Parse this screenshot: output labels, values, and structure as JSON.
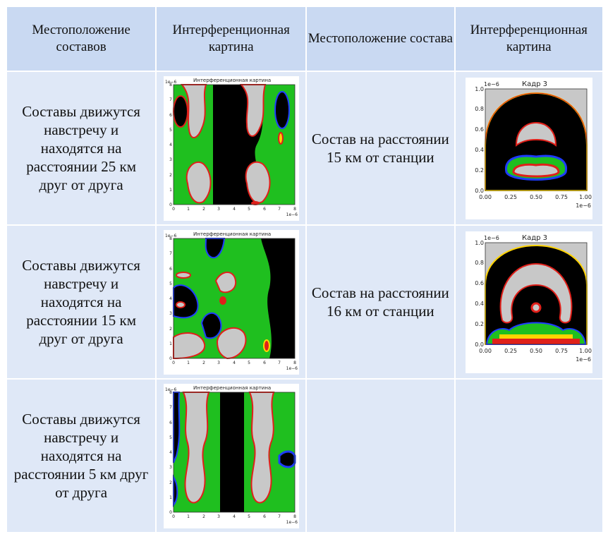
{
  "headers": [
    "Местоположение составов",
    "Интерференционная картина",
    "Местоположение состава",
    "Интерференционная картина"
  ],
  "rows": [
    {
      "left_text": "Составы движутся навстречу и находятся на расстоянии 25 км друг от друга",
      "right_text": "Состав на расстоянии 15 км от станции"
    },
    {
      "left_text": "Составы движутся навстречу и находятся на расстоянии 15 км друг от друга",
      "right_text": "Состав на расстоянии 16 км от станции"
    },
    {
      "left_text": "Составы движутся навстречу и находятся на расстоянии 5 км друг от друга",
      "right_text": ""
    }
  ],
  "left_plot": {
    "title": "Интерференционная картина",
    "scale_y": "1e−6",
    "scale_x": "1e−6",
    "y_ticks": [
      "0",
      "1",
      "2",
      "3",
      "4",
      "5",
      "6",
      "7",
      "8"
    ],
    "x_ticks": [
      "0",
      "1",
      "2",
      "3",
      "4",
      "5",
      "6",
      "7",
      "8"
    ]
  },
  "right_plot": {
    "title": "Кадр 3",
    "scale_y": "1e−6",
    "scale_x": "1e−6",
    "y_ticks": [
      "0.0",
      "0.2",
      "0.4",
      "0.6",
      "0.8",
      "1.0"
    ],
    "x_ticks": [
      "0.00",
      "0.25",
      "0.50",
      "0.75",
      "1.00"
    ]
  },
  "colors": {
    "header_bg": "#c9d9f2",
    "cell_bg": "#dfe8f7",
    "field_green": "#1fbf1f",
    "field_black": "#000000",
    "field_gray": "#c8c8c8",
    "ring_red": "#e0201a"
  }
}
